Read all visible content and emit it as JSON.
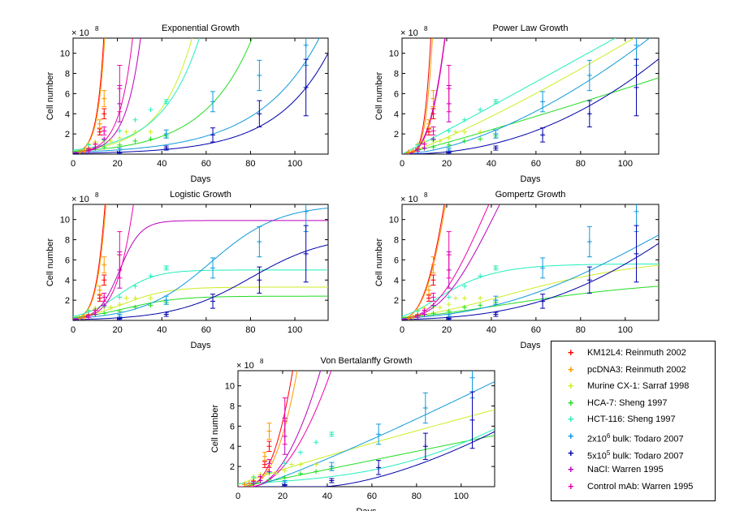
{
  "figure": {
    "y_scale_label": "× 10",
    "y_scale_exponent": "8"
  },
  "legend": [
    {
      "label_main": "KM12L4: Reinmuth 2002",
      "color": "#ff0000"
    },
    {
      "label_main": "pcDNA3: Reinmuth 2002",
      "color": "#ff9900"
    },
    {
      "label_main": "Murine CX-1: Sarraf 1998",
      "color": "#ccee22"
    },
    {
      "label_main": "HCA-7: Sheng 1997",
      "color": "#22dd22"
    },
    {
      "label_main": "HCT-116: Sheng 1997",
      "color": "#22eebb"
    },
    {
      "label_pre": "2x10",
      "label_sup": "6",
      "label_post": " bulk: Todaro 2007",
      "color": "#1199dd"
    },
    {
      "label_pre": "5x10",
      "label_sup": "5",
      "label_post": " bulk: Todaro 2007",
      "color": "#0000aa"
    },
    {
      "label_main": "NaCl: Warren 1995",
      "color": "#bb00bb"
    },
    {
      "label_main": "Control mAb: Warren 1995",
      "color": "#ee00aa"
    }
  ],
  "chart_data": [
    {
      "type": "line",
      "model": "exponential",
      "title": "Exponential Growth",
      "xlabel": "Days",
      "ylabel": "Cell number",
      "xlim": [
        0,
        115
      ],
      "ylim": [
        0,
        11.5
      ],
      "xticks": [
        0,
        20,
        40,
        60,
        80,
        100
      ],
      "yticks": [
        2,
        4,
        6,
        8,
        10
      ],
      "series": [
        {
          "name": "KM12L4: Reinmuth 2002",
          "params": {
            "y0": 0.12,
            "r": 0.33
          }
        },
        {
          "name": "pcDNA3: Reinmuth 2002",
          "params": {
            "y0": 0.12,
            "r": 0.32
          }
        },
        {
          "name": "Murine CX-1: Sarraf 1998",
          "params": {
            "y0": 0.3,
            "r": 0.068
          }
        },
        {
          "name": "HCA-7: Sheng 1997",
          "params": {
            "y0": 0.28,
            "r": 0.046
          }
        },
        {
          "name": "HCT-116: Sheng 1997",
          "params": {
            "y0": 0.4,
            "r": 0.059
          }
        },
        {
          "name": "2x10^6 bulk: Todaro 2007",
          "params": {
            "y0": 0.2,
            "r": 0.0365
          }
        },
        {
          "name": "5x10^5 bulk: Todaro 2007",
          "params": {
            "y0": 0.08,
            "r": 0.042
          }
        },
        {
          "name": "NaCl: Warren 1995",
          "params": {
            "y0": 0.12,
            "r": 0.15
          }
        },
        {
          "name": "Control mAb: Warren 1995",
          "params": {
            "y0": 0.12,
            "r": 0.17
          }
        }
      ]
    },
    {
      "type": "line",
      "model": "power",
      "title": "Power Law Growth",
      "xlabel": "Days",
      "ylabel": "Cell number",
      "xlim": [
        0,
        115
      ],
      "ylim": [
        0,
        11.5
      ],
      "xticks": [
        0,
        20,
        40,
        60,
        80,
        100
      ],
      "yticks": [
        2,
        4,
        6,
        8,
        10
      ],
      "series": [
        {
          "name": "KM12L4: Reinmuth 2002",
          "params": {
            "a": 9e-05,
            "b": 4.6
          }
        },
        {
          "name": "pcDNA3: Reinmuth 2002",
          "params": {
            "a": 7e-05,
            "b": 4.6
          }
        },
        {
          "name": "Murine CX-1: Sarraf 1998",
          "params": {
            "a": 0.048,
            "b": 1.18
          }
        },
        {
          "name": "HCA-7: Sheng 1997",
          "params": {
            "a": 0.045,
            "b": 1.08
          }
        },
        {
          "name": "HCT-116: Sheng 1997",
          "params": {
            "a": 0.11,
            "b": 1.02
          }
        },
        {
          "name": "2x10^6 bulk: Todaro 2007",
          "params": {
            "a": 0.0056,
            "b": 1.62
          }
        },
        {
          "name": "5x10^5 bulk: Todaro 2007",
          "params": {
            "a": 0.00035,
            "b": 2.15
          }
        },
        {
          "name": "NaCl: Warren 1995",
          "params": {
            "a": 0.0022,
            "b": 2.9
          }
        },
        {
          "name": "Control mAb: Warren 1995",
          "params": {
            "a": 0.0016,
            "b": 3.0
          }
        }
      ]
    },
    {
      "type": "line",
      "model": "logistic",
      "title": "Logistic Growth",
      "xlabel": "Days",
      "ylabel": "Cell number",
      "xlim": [
        0,
        115
      ],
      "ylim": [
        0,
        11.5
      ],
      "xticks": [
        0,
        20,
        40,
        60,
        80,
        100
      ],
      "yticks": [
        2,
        4,
        6,
        8,
        10
      ],
      "series": [
        {
          "name": "KM12L4: Reinmuth 2002",
          "params": {
            "K": 40,
            "y0": 0.12,
            "r": 0.34
          }
        },
        {
          "name": "pcDNA3: Reinmuth 2002",
          "params": {
            "K": 40,
            "y0": 0.12,
            "r": 0.33
          }
        },
        {
          "name": "Murine CX-1: Sarraf 1998",
          "params": {
            "K": 3.3,
            "y0": 0.3,
            "r": 0.1
          }
        },
        {
          "name": "HCA-7: Sheng 1997",
          "params": {
            "K": 2.4,
            "y0": 0.28,
            "r": 0.085
          }
        },
        {
          "name": "HCT-116: Sheng 1997",
          "params": {
            "K": 5.0,
            "y0": 0.4,
            "r": 0.12
          }
        },
        {
          "name": "2x10^6 bulk: Todaro 2007",
          "params": {
            "K": 11.5,
            "y0": 0.2,
            "r": 0.065
          }
        },
        {
          "name": "5x10^5 bulk: Todaro 2007",
          "params": {
            "K": 8.5,
            "y0": 0.08,
            "r": 0.058
          }
        },
        {
          "name": "NaCl: Warren 1995",
          "params": {
            "K": 9.9,
            "y0": 0.12,
            "r": 0.21
          }
        },
        {
          "name": "Control mAb: Warren 1995",
          "params": {
            "K": 40,
            "y0": 0.12,
            "r": 0.18
          }
        }
      ]
    },
    {
      "type": "line",
      "model": "gompertz",
      "title": "Gompertz Growth",
      "xlabel": "Days",
      "ylabel": "Cell number",
      "xlim": [
        0,
        115
      ],
      "ylim": [
        0,
        11.5
      ],
      "xticks": [
        0,
        20,
        40,
        60,
        80,
        100
      ],
      "yticks": [
        2,
        4,
        6,
        8,
        10
      ],
      "series": [
        {
          "name": "KM12L4: Reinmuth 2002",
          "params": {
            "K": 60,
            "y0": 0.12,
            "b": 0.07
          }
        },
        {
          "name": "pcDNA3: Reinmuth 2002",
          "params": {
            "K": 60,
            "y0": 0.12,
            "b": 0.068
          }
        },
        {
          "name": "Murine CX-1: Sarraf 1998",
          "params": {
            "K": 6.5,
            "y0": 0.3,
            "b": 0.025
          }
        },
        {
          "name": "HCA-7: Sheng 1997",
          "params": {
            "K": 4.2,
            "y0": 0.28,
            "b": 0.022
          }
        },
        {
          "name": "HCT-116: Sheng 1997",
          "params": {
            "K": 5.6,
            "y0": 0.4,
            "b": 0.065
          }
        },
        {
          "name": "2x10^6 bulk: Todaro 2007",
          "params": {
            "K": 25,
            "y0": 0.2,
            "b": 0.013
          }
        },
        {
          "name": "5x10^5 bulk: Todaro 2007",
          "params": {
            "K": 40,
            "y0": 0.08,
            "b": 0.0115
          }
        },
        {
          "name": "NaCl: Warren 1995",
          "params": {
            "K": 30,
            "y0": 0.12,
            "b": 0.04
          }
        },
        {
          "name": "Control mAb: Warren 1995",
          "params": {
            "K": 30,
            "y0": 0.12,
            "b": 0.045
          }
        }
      ]
    },
    {
      "type": "line",
      "model": "bertalanffy",
      "title": "Von Bertalanffy Growth",
      "xlabel": "Days",
      "ylabel": "Cell number",
      "xlim": [
        0,
        115
      ],
      "ylim": [
        0,
        11.5
      ],
      "xticks": [
        0,
        20,
        40,
        60,
        80,
        100
      ],
      "yticks": [
        2,
        4,
        6,
        8,
        10
      ],
      "series": [
        {
          "name": "KM12L4: Reinmuth 2002",
          "params": {
            "a": 0.0035,
            "b": 2.6,
            "t0": 2
          }
        },
        {
          "name": "pcDNA3: Reinmuth 2002",
          "params": {
            "a": 0.0028,
            "b": 2.6,
            "t0": 2
          }
        },
        {
          "name": "Murine CX-1: Sarraf 1998",
          "params": {
            "a": 0.105,
            "b": 0.9,
            "t0": -2
          }
        },
        {
          "name": "HCA-7: Sheng 1997",
          "params": {
            "a": 0.045,
            "b": 1.0,
            "t0": 2
          }
        },
        {
          "name": "HCT-116: Sheng 1997",
          "params": {
            "K": 14,
            "y0": 0.3,
            "r": 0.03
          }
        },
        {
          "name": "2x10^6 bulk: Todaro 2007",
          "params": {
            "a": 0.055,
            "b": 1.12,
            "t0": 7
          }
        },
        {
          "name": "5x10^5 bulk: Todaro 2007",
          "params": {
            "a": 0.0065,
            "b": 1.55,
            "t0": 38
          }
        },
        {
          "name": "NaCl: Warren 1995",
          "params": {
            "a": 0.012,
            "b": 2.0,
            "t0": 6
          }
        },
        {
          "name": "Control mAb: Warren 1995",
          "params": {
            "a": 0.0085,
            "b": 2.0,
            "t0": 5
          }
        }
      ]
    }
  ],
  "observations": [
    {
      "name": "KM12L4: Reinmuth 2002",
      "points": [
        [
          3,
          0.2
        ],
        [
          5,
          0.3
        ],
        [
          7,
          0.5
        ],
        [
          10,
          1.0
        ],
        [
          12,
          2.2
        ],
        [
          14,
          4.0
        ]
      ],
      "errors": [
        0,
        0,
        0,
        0,
        0.3,
        0.5
      ]
    },
    {
      "name": "pcDNA3: Reinmuth 2002",
      "points": [
        [
          3,
          0.2
        ],
        [
          5,
          0.3
        ],
        [
          7,
          0.6
        ],
        [
          10,
          1.2
        ],
        [
          12,
          3.0
        ],
        [
          14,
          5.5
        ]
      ],
      "errors": [
        0,
        0,
        0,
        0,
        0.4,
        0.8
      ]
    },
    {
      "name": "Murine CX-1: Sarraf 1998",
      "points": [
        [
          7,
          1.0
        ],
        [
          10,
          1.2
        ],
        [
          14,
          1.3
        ],
        [
          17,
          1.3
        ],
        [
          21,
          1.6
        ],
        [
          24,
          2.2
        ],
        [
          28,
          2.2
        ],
        [
          35,
          2.2
        ]
      ],
      "errors": [
        0,
        0,
        0,
        0,
        0,
        0,
        0,
        0
      ]
    },
    {
      "name": "HCA-7: Sheng 1997",
      "points": [
        [
          7,
          0.5
        ],
        [
          14,
          0.7
        ],
        [
          21,
          0.9
        ],
        [
          28,
          1.3
        ],
        [
          35,
          1.5
        ],
        [
          42,
          1.8
        ]
      ],
      "errors": [
        0,
        0,
        0,
        0,
        0,
        0.2
      ]
    },
    {
      "name": "HCT-116: Sheng 1997",
      "points": [
        [
          7,
          0.9
        ],
        [
          14,
          1.4
        ],
        [
          21,
          2.3
        ],
        [
          28,
          3.4
        ],
        [
          35,
          4.4
        ],
        [
          42,
          5.2
        ]
      ],
      "errors": [
        0,
        0,
        0,
        0,
        0,
        0.2
      ]
    },
    {
      "name": "2x10^6 bulk: Todaro 2007",
      "points": [
        [
          21,
          0.4
        ],
        [
          42,
          2.0
        ],
        [
          63,
          5.2
        ],
        [
          84,
          7.8
        ],
        [
          105,
          10.8
        ]
      ],
      "errors": [
        0.2,
        0.4,
        1.0,
        1.5,
        2.0
      ]
    },
    {
      "name": "5x10^5 bulk: Todaro 2007",
      "points": [
        [
          21,
          0.1
        ],
        [
          42,
          0.6
        ],
        [
          63,
          1.9
        ],
        [
          84,
          4.0
        ],
        [
          105,
          6.6
        ]
      ],
      "errors": [
        0.1,
        0.2,
        0.7,
        1.3,
        2.8
      ]
    },
    {
      "name": "NaCl: Warren 1995",
      "points": [
        [
          7,
          0.3
        ],
        [
          10,
          0.6
        ],
        [
          14,
          1.5
        ],
        [
          21,
          5.0
        ]
      ],
      "errors": [
        0,
        0,
        0,
        1.8
      ]
    },
    {
      "name": "Control mAb: Warren 1995",
      "points": [
        [
          7,
          0.5
        ],
        [
          10,
          1.0
        ],
        [
          14,
          2.3
        ],
        [
          21,
          6.5
        ]
      ],
      "errors": [
        0,
        0,
        0.4,
        2.3
      ]
    }
  ]
}
